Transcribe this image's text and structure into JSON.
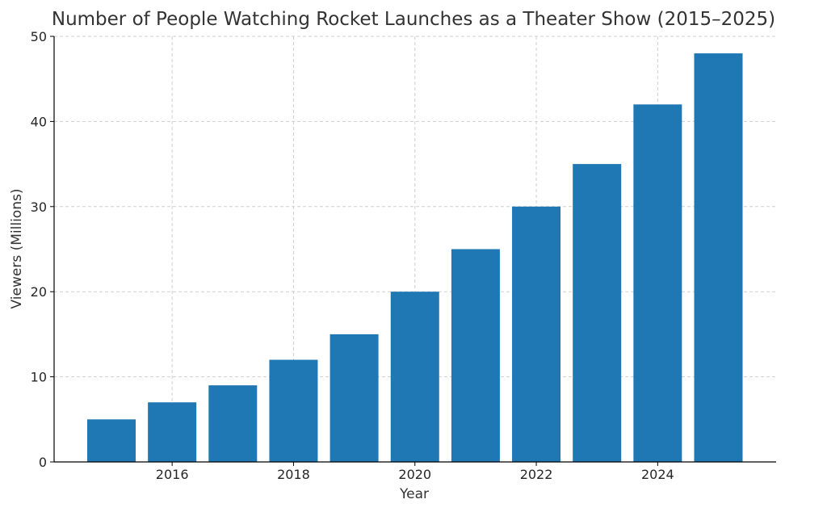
{
  "chart_data": {
    "type": "bar",
    "title": "Number of People Watching Rocket Launches as a Theater Show (2015–2025)",
    "xlabel": "Year",
    "ylabel": "Viewers (Millions)",
    "categories": [
      "2015",
      "2016",
      "2017",
      "2018",
      "2019",
      "2020",
      "2021",
      "2022",
      "2023",
      "2024",
      "2025"
    ],
    "values": [
      5,
      7,
      9,
      12,
      15,
      20,
      25,
      30,
      35,
      42,
      48
    ],
    "x_ticks": [
      "2016",
      "2018",
      "2020",
      "2022",
      "2024"
    ],
    "y_ticks": [
      "0",
      "10",
      "20",
      "30",
      "40",
      "50"
    ],
    "ylim": [
      0,
      50
    ],
    "grid": true,
    "bar_color": "#1f77b4",
    "legend": "none"
  }
}
